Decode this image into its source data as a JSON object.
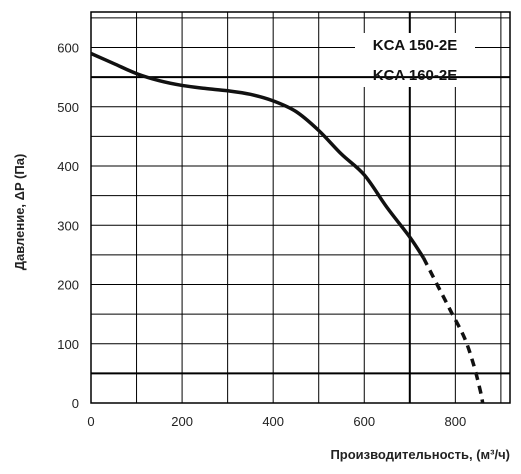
{
  "chart_data": {
    "type": "line",
    "xlabel": "Производительность, (м³/ч)",
    "ylabel": "Давление, ΔP (Па)",
    "xlim": [
      0,
      920
    ],
    "ylim": [
      0,
      660
    ],
    "x_ticks": [
      0,
      200,
      400,
      600,
      800
    ],
    "y_ticks": [
      0,
      100,
      200,
      300,
      400,
      500,
      600
    ],
    "grid": true,
    "annotations": [
      "KCA 150-2E",
      "KCA 160-2E"
    ],
    "reference_lines": {
      "y": [
        550,
        50
      ],
      "x": [
        700
      ]
    },
    "series": [
      {
        "style": "solid",
        "x": [
          0,
          50,
          100,
          150,
          200,
          250,
          300,
          350,
          400,
          450,
          500,
          550,
          600,
          650,
          700,
          730
        ],
        "y": [
          590,
          573,
          556,
          544,
          536,
          531,
          527,
          521,
          510,
          492,
          460,
          420,
          385,
          330,
          280,
          245
        ]
      },
      {
        "style": "dashed",
        "x": [
          730,
          760,
          790,
          820,
          840,
          855,
          860
        ],
        "y": [
          245,
          200,
          155,
          110,
          65,
          20,
          0
        ]
      }
    ]
  }
}
